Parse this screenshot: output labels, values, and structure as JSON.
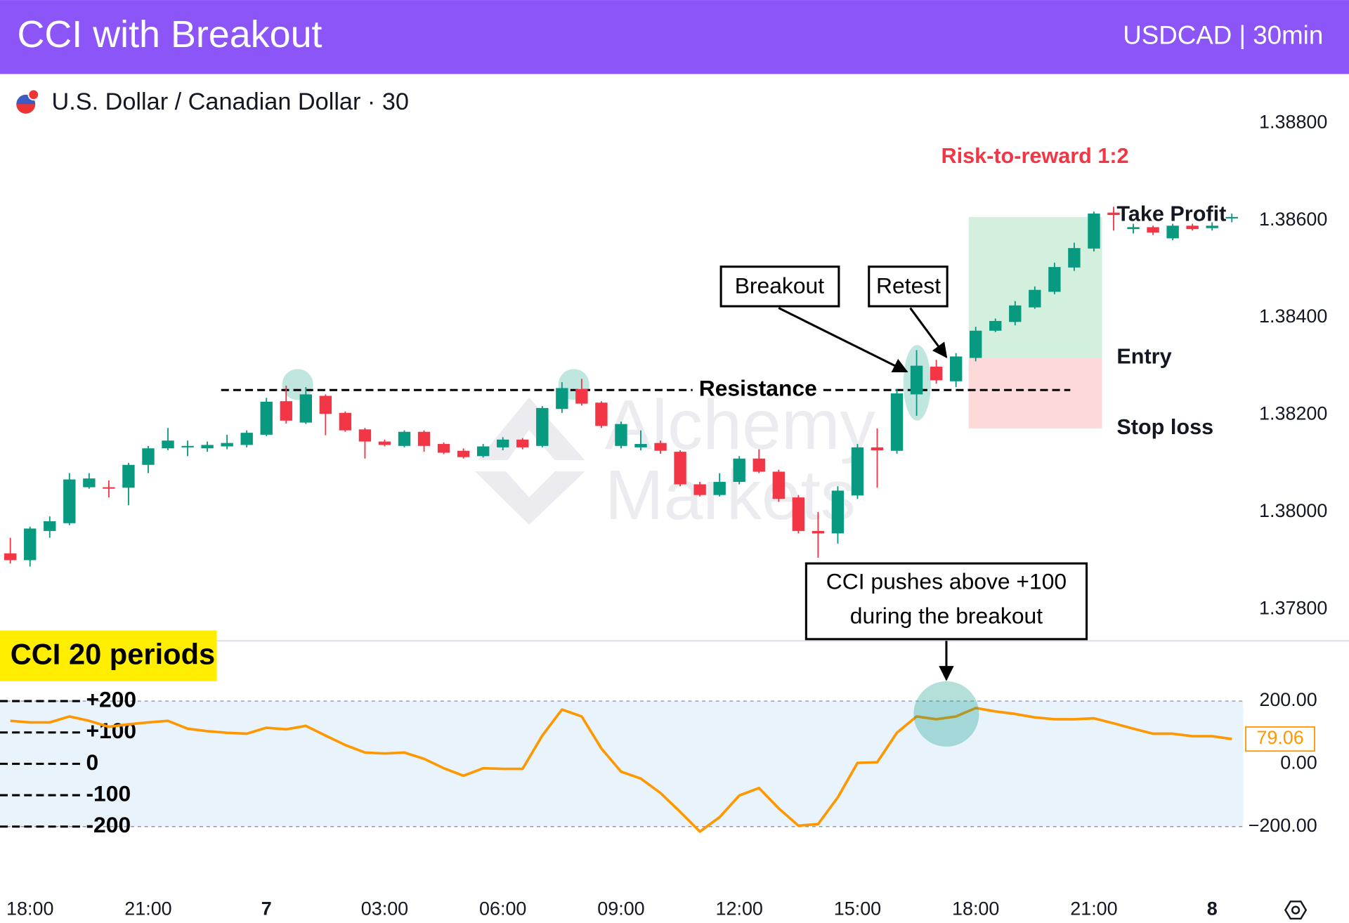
{
  "header": {
    "title": "CCI with Breakout",
    "subtitle": "USDCAD | 30min"
  },
  "chart_data": [
    {
      "type": "candlestick",
      "title": "U.S. Dollar / Canadian Dollar · 30",
      "up_color": "#089981",
      "down_color": "#f23645",
      "open": [
        1.37915,
        1.37901,
        1.37961,
        1.37977,
        1.38051,
        1.38051,
        1.3805,
        1.38097,
        1.38131,
        1.38133,
        1.38131,
        1.38135,
        1.38138,
        1.38159,
        1.38228,
        1.38184,
        1.38239,
        1.38204,
        1.3817,
        1.38145,
        1.38136,
        1.38165,
        1.3814,
        1.38126,
        1.38115,
        1.38133,
        1.38149,
        1.38136,
        1.38212,
        1.38253,
        1.38225,
        1.38136,
        1.38133,
        1.38142,
        1.38124,
        1.38057,
        1.38035,
        1.38062,
        1.3811,
        1.38083,
        1.3803,
        1.37961,
        1.37956,
        1.38034,
        1.38133,
        1.38126,
        1.38242,
        1.38299,
        1.38269,
        1.38317,
        1.38373,
        1.38391,
        1.38421,
        1.38453,
        1.38503,
        1.38542,
        1.38616,
        1.38582,
        1.38586,
        1.38563,
        1.38589,
        1.38584,
        1.38604
      ],
      "high": [
        1.37947,
        1.3797,
        1.37991,
        1.3808,
        1.3808,
        1.38065,
        1.38101,
        1.38136,
        1.38173,
        1.38147,
        1.38145,
        1.38159,
        1.38168,
        1.38235,
        1.3826,
        1.38257,
        1.38242,
        1.38207,
        1.38173,
        1.38149,
        1.38168,
        1.38168,
        1.38143,
        1.38131,
        1.3814,
        1.38154,
        1.38152,
        1.38218,
        1.38267,
        1.38274,
        1.38228,
        1.38186,
        1.38168,
        1.38147,
        1.38127,
        1.38062,
        1.3808,
        1.38115,
        1.38129,
        1.38087,
        1.38035,
        1.38,
        1.38053,
        1.3814,
        1.38172,
        1.38253,
        1.38333,
        1.38313,
        1.38327,
        1.38381,
        1.38398,
        1.38434,
        1.38464,
        1.38513,
        1.38554,
        1.38618,
        1.38628,
        1.38593,
        1.38589,
        1.38593,
        1.38593,
        1.38596,
        1.38614
      ],
      "low": [
        1.37894,
        1.37888,
        1.37947,
        1.37973,
        1.38048,
        1.3803,
        1.38014,
        1.3808,
        1.38127,
        1.38115,
        1.38124,
        1.38129,
        1.38133,
        1.38156,
        1.38182,
        1.38181,
        1.38158,
        1.38165,
        1.3811,
        1.38135,
        1.38133,
        1.38124,
        1.38119,
        1.3811,
        1.38112,
        1.38127,
        1.38129,
        1.38133,
        1.38204,
        1.38219,
        1.38173,
        1.38131,
        1.38127,
        1.3812,
        1.38053,
        1.38032,
        1.38032,
        1.38057,
        1.3808,
        1.38021,
        1.37956,
        1.37906,
        1.37935,
        1.38027,
        1.3805,
        1.3812,
        1.38198,
        1.38264,
        1.38257,
        1.3831,
        1.3837,
        1.38384,
        1.38418,
        1.38448,
        1.38496,
        1.38536,
        1.38579,
        1.38573,
        1.3857,
        1.38559,
        1.38579,
        1.38579,
        1.38596
      ],
      "close": [
        1.37901,
        1.37966,
        1.37981,
        1.38067,
        1.38069,
        1.38048,
        1.38097,
        1.38131,
        1.38147,
        1.38136,
        1.38138,
        1.38142,
        1.38163,
        1.38227,
        1.38188,
        1.38242,
        1.38202,
        1.38168,
        1.38145,
        1.38138,
        1.38165,
        1.38136,
        1.38122,
        1.38113,
        1.38135,
        1.38149,
        1.38133,
        1.38214,
        1.38255,
        1.38223,
        1.38177,
        1.38181,
        1.3814,
        1.38126,
        1.38057,
        1.38035,
        1.38062,
        1.3811,
        1.38083,
        1.38027,
        1.37961,
        1.37956,
        1.38044,
        1.38133,
        1.38127,
        1.38244,
        1.38301,
        1.38271,
        1.3832,
        1.38373,
        1.38393,
        1.38425,
        1.38457,
        1.38504,
        1.38543,
        1.38614,
        1.38611,
        1.38586,
        1.38575,
        1.38589,
        1.38582,
        1.38589,
        1.38607
      ],
      "xlim": [
        -0.524,
        62.576
      ],
      "ylim": [
        1.37735,
        1.38894
      ],
      "yticks": [
        {
          "value": 1.388,
          "label": "1.38800"
        },
        {
          "value": 1.386,
          "label": "1.38600"
        },
        {
          "value": 1.384,
          "label": "1.38400"
        },
        {
          "value": 1.382,
          "label": "1.38200"
        },
        {
          "value": 1.38,
          "label": "1.38000"
        },
        {
          "value": 1.378,
          "label": "1.37800"
        }
      ],
      "watermark": [
        "Alchemy",
        "Markets"
      ],
      "resistance": {
        "label": "Resistance",
        "value": 1.38251
      },
      "breakout_label": "Breakout",
      "retest_label": "Retest",
      "trade": {
        "title": "Risk-to-reward 1:2",
        "take_profit": {
          "label": "Take Profit",
          "value": 1.38607
        },
        "entry": {
          "label": "Entry",
          "value": 1.38317
        },
        "stop_loss": {
          "label": "Stop loss",
          "value": 1.38172
        }
      }
    },
    {
      "type": "line",
      "title": "CCI 20 periods",
      "color": "#ff9800",
      "values": [
        137,
        132,
        132,
        151,
        137,
        118,
        126,
        132,
        137,
        112,
        104,
        99,
        96,
        115,
        110,
        121,
        90,
        60,
        36,
        33,
        36,
        16,
        -14,
        -38,
        -14,
        -16,
        -16,
        90,
        173,
        151,
        49,
        -25,
        -47,
        -93,
        -153,
        -216,
        -170,
        -101,
        -77,
        -142,
        -197,
        -192,
        -107,
        3,
        5,
        99,
        151,
        142,
        151,
        178,
        167,
        159,
        148,
        142,
        142,
        145,
        129,
        112,
        96,
        96,
        88,
        88,
        79.06
      ],
      "xlim": [
        -0.524,
        62.576
      ],
      "xticks": [
        {
          "value": 1,
          "label": "18:00"
        },
        {
          "value": 7,
          "label": "21:00"
        },
        {
          "value": 13,
          "label": "7"
        },
        {
          "value": 19,
          "label": "03:00"
        },
        {
          "value": 25,
          "label": "06:00"
        },
        {
          "value": 31,
          "label": "09:00"
        },
        {
          "value": 37,
          "label": "12:00"
        },
        {
          "value": 43,
          "label": "15:00"
        },
        {
          "value": 49,
          "label": "18:00"
        },
        {
          "value": 55,
          "label": "21:00"
        },
        {
          "value": 61,
          "label": "8"
        }
      ],
      "ylim": [
        -403,
        392
      ],
      "yticks": [
        {
          "value": 200,
          "label": "200.00"
        },
        {
          "value": 0,
          "label": "0.00"
        },
        {
          "value": -200,
          "label": "−200.00"
        }
      ],
      "band": [
        -200,
        200
      ],
      "levels": [
        {
          "value": 200,
          "label": "+200"
        },
        {
          "value": 100,
          "label": "+100"
        },
        0,
        -100,
        -200
      ],
      "callout": [
        "CCI pushes above +100",
        "during the breakout"
      ]
    }
  ]
}
